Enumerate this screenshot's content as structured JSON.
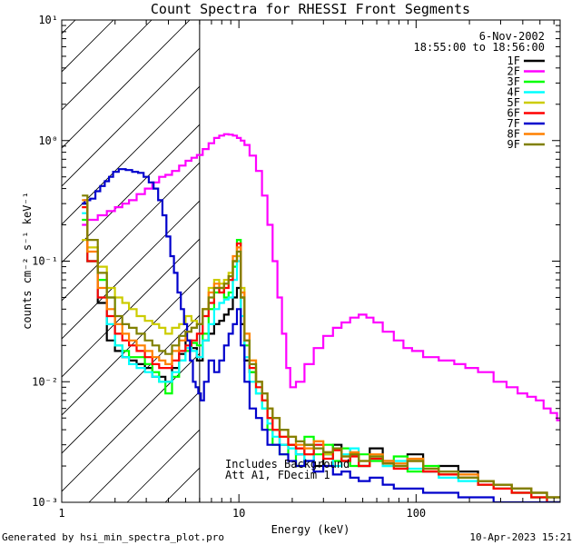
{
  "chart_data": {
    "type": "line",
    "title": "Count Spectra for RHESSI Front Segments",
    "xlabel": "Energy (keV)",
    "ylabel": "counts cm⁻² s⁻¹ keV⁻¹",
    "xscale": "log",
    "yscale": "log",
    "xlim": [
      1,
      650
    ],
    "ylim": [
      0.001,
      10
    ],
    "x_ticks": [
      {
        "value": 1,
        "label": "1"
      },
      {
        "value": 10,
        "label": "10"
      },
      {
        "value": 100,
        "label": "100"
      }
    ],
    "y_ticks": [
      {
        "value": 0.001,
        "label": "10⁻³"
      },
      {
        "value": 0.01,
        "label": "10⁻²"
      },
      {
        "value": 0.1,
        "label": "10⁻¹"
      },
      {
        "value": 1,
        "label": "10⁰"
      },
      {
        "value": 10,
        "label": "10¹"
      }
    ],
    "attenuator_band": {
      "x_from": 1,
      "x_to": 6
    },
    "date": "6-Nov-2002",
    "time_range": "18:55:00 to 18:56:00",
    "notes": [
      "Includes Background",
      "Att A1, FDecim 1"
    ],
    "footer_left": "Generated by hsi_min_spectra_plot.pro",
    "footer_right": "10-Apr-2023 15:21",
    "grid": false,
    "legend_position": "top-right",
    "series": [
      {
        "name": "1F",
        "color": "#000000",
        "x": [
          1.3,
          1.5,
          1.7,
          1.9,
          2.1,
          2.3,
          2.5,
          2.8,
          3.1,
          3.4,
          3.7,
          4.0,
          4.4,
          4.8,
          5.2,
          5.6,
          6.0,
          6.5,
          7.0,
          7.5,
          8.0,
          8.5,
          9.0,
          9.5,
          10.0,
          10.5,
          11,
          12,
          13,
          14,
          15,
          16,
          18,
          20,
          22,
          25,
          28,
          32,
          36,
          40,
          45,
          50,
          60,
          70,
          80,
          100,
          120,
          150,
          200,
          250,
          300,
          400,
          500,
          600
        ],
        "y": [
          0.3,
          0.1,
          0.045,
          0.022,
          0.018,
          0.016,
          0.015,
          0.014,
          0.013,
          0.011,
          0.011,
          0.01,
          0.013,
          0.017,
          0.022,
          0.019,
          0.015,
          0.022,
          0.025,
          0.03,
          0.032,
          0.036,
          0.04,
          0.05,
          0.06,
          0.03,
          0.015,
          0.012,
          0.01,
          0.007,
          0.005,
          0.004,
          0.003,
          0.003,
          0.0025,
          0.003,
          0.002,
          0.0025,
          0.003,
          0.0022,
          0.0025,
          0.002,
          0.0028,
          0.0022,
          0.002,
          0.0025,
          0.0018,
          0.002,
          0.0018,
          0.0015,
          0.0014,
          0.0013,
          0.0012,
          0.0011
        ]
      },
      {
        "name": "2F",
        "color": "#ff00ff",
        "x": [
          1.3,
          1.5,
          1.7,
          1.9,
          2.1,
          2.3,
          2.5,
          2.8,
          3.1,
          3.4,
          3.7,
          4.0,
          4.4,
          4.8,
          5.2,
          5.6,
          6.0,
          6.5,
          7.0,
          7.5,
          8.0,
          8.5,
          9.0,
          9.5,
          10.0,
          10.5,
          11,
          12,
          13,
          14,
          15,
          16,
          17,
          18,
          19,
          20,
          22,
          25,
          28,
          32,
          36,
          40,
          45,
          50,
          55,
          60,
          70,
          80,
          90,
          100,
          120,
          150,
          180,
          200,
          250,
          300,
          350,
          400,
          450,
          500,
          550,
          600,
          650
        ],
        "y": [
          0.2,
          0.22,
          0.24,
          0.26,
          0.28,
          0.3,
          0.32,
          0.36,
          0.4,
          0.45,
          0.5,
          0.52,
          0.56,
          0.62,
          0.68,
          0.72,
          0.76,
          0.85,
          0.95,
          1.05,
          1.1,
          1.13,
          1.12,
          1.1,
          1.05,
          1.0,
          0.92,
          0.75,
          0.56,
          0.35,
          0.2,
          0.1,
          0.05,
          0.025,
          0.013,
          0.009,
          0.01,
          0.014,
          0.019,
          0.024,
          0.028,
          0.031,
          0.034,
          0.036,
          0.034,
          0.031,
          0.026,
          0.022,
          0.019,
          0.018,
          0.016,
          0.015,
          0.014,
          0.013,
          0.012,
          0.01,
          0.009,
          0.008,
          0.0075,
          0.007,
          0.006,
          0.0055,
          0.0048
        ]
      },
      {
        "name": "3F",
        "color": "#00ff00",
        "x": [
          1.3,
          1.5,
          1.7,
          1.9,
          2.1,
          2.3,
          2.5,
          2.8,
          3.1,
          3.4,
          3.7,
          4.0,
          4.4,
          4.8,
          5.2,
          5.6,
          6.0,
          6.5,
          7.0,
          7.5,
          8.0,
          8.5,
          9.0,
          9.5,
          10.0,
          10.5,
          11,
          12,
          13,
          14,
          15,
          16,
          18,
          20,
          22,
          25,
          28,
          32,
          36,
          40,
          45,
          50,
          60,
          70,
          80,
          100,
          120,
          150,
          200,
          250,
          300,
          400,
          500,
          600
        ],
        "y": [
          0.22,
          0.1,
          0.07,
          0.05,
          0.02,
          0.018,
          0.016,
          0.016,
          0.014,
          0.012,
          0.01,
          0.008,
          0.011,
          0.015,
          0.018,
          0.021,
          0.02,
          0.025,
          0.04,
          0.055,
          0.06,
          0.05,
          0.055,
          0.09,
          0.15,
          0.05,
          0.02,
          0.012,
          0.008,
          0.006,
          0.004,
          0.003,
          0.0025,
          0.003,
          0.002,
          0.0035,
          0.0025,
          0.003,
          0.0022,
          0.0028,
          0.002,
          0.0025,
          0.0022,
          0.002,
          0.0024,
          0.0018,
          0.002,
          0.0017,
          0.0016,
          0.0014,
          0.0013,
          0.0012,
          0.0011,
          0.001
        ]
      },
      {
        "name": "4F",
        "color": "#00ffff",
        "x": [
          1.3,
          1.5,
          1.7,
          1.9,
          2.1,
          2.3,
          2.5,
          2.8,
          3.1,
          3.4,
          3.7,
          4.0,
          4.4,
          4.8,
          5.2,
          5.6,
          6.0,
          6.5,
          7.0,
          7.5,
          8.0,
          8.5,
          9.0,
          9.5,
          10.0,
          10.5,
          11,
          12,
          13,
          14,
          15,
          16,
          18,
          20,
          22,
          25,
          28,
          32,
          36,
          40,
          45,
          50,
          60,
          70,
          80,
          100,
          120,
          150,
          200,
          250,
          300,
          400,
          500,
          600
        ],
        "y": [
          0.25,
          0.1,
          0.05,
          0.03,
          0.02,
          0.016,
          0.014,
          0.013,
          0.012,
          0.011,
          0.01,
          0.01,
          0.012,
          0.015,
          0.019,
          0.018,
          0.016,
          0.022,
          0.03,
          0.04,
          0.045,
          0.048,
          0.05,
          0.07,
          0.1,
          0.035,
          0.016,
          0.01,
          0.008,
          0.006,
          0.0045,
          0.0035,
          0.003,
          0.0028,
          0.0025,
          0.0022,
          0.003,
          0.0025,
          0.002,
          0.0025,
          0.0028,
          0.002,
          0.0023,
          0.002,
          0.0022,
          0.0019,
          0.0018,
          0.0016,
          0.0015,
          0.0014,
          0.0013,
          0.0012,
          0.0011,
          0.001
        ]
      },
      {
        "name": "5F",
        "color": "#cccc00",
        "x": [
          1.3,
          1.5,
          1.7,
          1.9,
          2.1,
          2.3,
          2.5,
          2.8,
          3.1,
          3.4,
          3.7,
          4.0,
          4.4,
          4.8,
          5.2,
          5.6,
          6.0,
          6.5,
          7.0,
          7.5,
          8.0,
          8.5,
          9.0,
          9.5,
          10.0,
          10.5,
          11,
          12,
          13,
          14,
          15,
          16,
          18,
          20,
          22,
          25,
          28,
          32,
          36,
          40,
          45,
          50,
          60,
          70,
          80,
          100,
          120,
          150,
          200,
          250,
          300,
          400,
          500,
          600
        ],
        "y": [
          0.15,
          0.13,
          0.09,
          0.06,
          0.05,
          0.045,
          0.04,
          0.035,
          0.032,
          0.03,
          0.028,
          0.025,
          0.028,
          0.03,
          0.035,
          0.032,
          0.03,
          0.04,
          0.06,
          0.07,
          0.065,
          0.07,
          0.08,
          0.1,
          0.11,
          0.06,
          0.025,
          0.015,
          0.01,
          0.007,
          0.005,
          0.004,
          0.0035,
          0.003,
          0.0028,
          0.0025,
          0.0032,
          0.0025,
          0.0028,
          0.0022,
          0.0025,
          0.002,
          0.0024,
          0.0021,
          0.002,
          0.0022,
          0.0019,
          0.0017,
          0.0016,
          0.0014,
          0.0013,
          0.0012,
          0.0011,
          0.001
        ]
      },
      {
        "name": "6F",
        "color": "#ff0000",
        "x": [
          1.3,
          1.5,
          1.7,
          1.9,
          2.1,
          2.3,
          2.5,
          2.8,
          3.1,
          3.4,
          3.7,
          4.0,
          4.4,
          4.8,
          5.2,
          5.6,
          6.0,
          6.5,
          7.0,
          7.5,
          8.0,
          8.5,
          9.0,
          9.5,
          10.0,
          10.5,
          11,
          12,
          13,
          14,
          15,
          16,
          18,
          20,
          22,
          25,
          28,
          32,
          36,
          40,
          45,
          50,
          60,
          70,
          80,
          100,
          120,
          150,
          200,
          250,
          300,
          400,
          500,
          600
        ],
        "y": [
          0.28,
          0.1,
          0.05,
          0.035,
          0.025,
          0.022,
          0.02,
          0.018,
          0.016,
          0.014,
          0.013,
          0.013,
          0.015,
          0.018,
          0.02,
          0.022,
          0.025,
          0.035,
          0.045,
          0.06,
          0.055,
          0.06,
          0.07,
          0.1,
          0.14,
          0.05,
          0.022,
          0.013,
          0.009,
          0.007,
          0.005,
          0.004,
          0.0035,
          0.003,
          0.0028,
          0.0025,
          0.003,
          0.0023,
          0.0027,
          0.0022,
          0.0024,
          0.002,
          0.0023,
          0.0021,
          0.0019,
          0.0022,
          0.0018,
          0.0017,
          0.0016,
          0.0014,
          0.0013,
          0.0012,
          0.0011,
          0.001
        ]
      },
      {
        "name": "7F",
        "color": "#0000cc",
        "x": [
          1.3,
          1.4,
          1.5,
          1.6,
          1.7,
          1.8,
          1.9,
          2.0,
          2.2,
          2.4,
          2.6,
          2.8,
          3.0,
          3.2,
          3.4,
          3.6,
          3.8,
          4.0,
          4.2,
          4.4,
          4.6,
          4.8,
          5.0,
          5.2,
          5.4,
          5.6,
          5.8,
          6.0,
          6.2,
          6.5,
          7.0,
          7.5,
          8.0,
          8.5,
          9.0,
          9.5,
          10.0,
          10.5,
          11,
          12,
          13,
          14,
          15,
          16,
          18,
          20,
          22,
          25,
          28,
          32,
          36,
          40,
          45,
          50,
          60,
          70,
          80,
          100,
          120,
          150,
          200,
          250,
          300,
          400,
          500,
          600
        ],
        "y": [
          0.3,
          0.32,
          0.33,
          0.38,
          0.42,
          0.46,
          0.5,
          0.55,
          0.58,
          0.57,
          0.55,
          0.54,
          0.5,
          0.45,
          0.4,
          0.32,
          0.24,
          0.16,
          0.11,
          0.08,
          0.055,
          0.04,
          0.03,
          0.022,
          0.015,
          0.01,
          0.009,
          0.008,
          0.007,
          0.01,
          0.015,
          0.012,
          0.015,
          0.02,
          0.025,
          0.03,
          0.04,
          0.02,
          0.01,
          0.006,
          0.005,
          0.004,
          0.003,
          0.003,
          0.0025,
          0.0022,
          0.002,
          0.0022,
          0.0018,
          0.002,
          0.0017,
          0.0018,
          0.0016,
          0.0015,
          0.0016,
          0.0014,
          0.0013,
          0.0013,
          0.0012,
          0.0012,
          0.0011,
          0.0011,
          0.001,
          0.001,
          0.001,
          0.001
        ]
      },
      {
        "name": "8F",
        "color": "#ff8000",
        "x": [
          1.3,
          1.5,
          1.7,
          1.9,
          2.1,
          2.3,
          2.5,
          2.8,
          3.1,
          3.4,
          3.7,
          4.0,
          4.4,
          4.8,
          5.2,
          5.6,
          6.0,
          6.5,
          7.0,
          7.5,
          8.0,
          8.5,
          9.0,
          9.5,
          10.0,
          10.5,
          11,
          12,
          13,
          14,
          15,
          16,
          18,
          20,
          22,
          25,
          28,
          32,
          36,
          40,
          45,
          50,
          60,
          70,
          80,
          100,
          120,
          150,
          200,
          250,
          300,
          400,
          500,
          600
        ],
        "y": [
          0.32,
          0.12,
          0.06,
          0.04,
          0.03,
          0.025,
          0.022,
          0.02,
          0.018,
          0.016,
          0.015,
          0.014,
          0.018,
          0.022,
          0.026,
          0.028,
          0.03,
          0.04,
          0.055,
          0.065,
          0.06,
          0.065,
          0.075,
          0.11,
          0.13,
          0.055,
          0.025,
          0.015,
          0.01,
          0.008,
          0.006,
          0.005,
          0.004,
          0.0035,
          0.003,
          0.0028,
          0.0032,
          0.0026,
          0.0028,
          0.0024,
          0.0026,
          0.0022,
          0.0025,
          0.0022,
          0.0021,
          0.0023,
          0.0019,
          0.0018,
          0.0017,
          0.0015,
          0.0014,
          0.0013,
          0.0012,
          0.0011
        ]
      },
      {
        "name": "9F",
        "color": "#808000",
        "x": [
          1.3,
          1.5,
          1.7,
          1.9,
          2.1,
          2.3,
          2.5,
          2.8,
          3.1,
          3.4,
          3.7,
          4.0,
          4.4,
          4.8,
          5.2,
          5.6,
          6.0,
          6.5,
          7.0,
          7.5,
          8.0,
          8.5,
          9.0,
          9.5,
          10.0,
          10.5,
          11,
          12,
          13,
          14,
          15,
          16,
          18,
          20,
          22,
          25,
          28,
          32,
          36,
          40,
          45,
          50,
          60,
          70,
          80,
          100,
          120,
          150,
          200,
          250,
          300,
          400,
          500,
          600
        ],
        "y": [
          0.35,
          0.15,
          0.08,
          0.05,
          0.035,
          0.03,
          0.028,
          0.025,
          0.022,
          0.02,
          0.018,
          0.017,
          0.02,
          0.024,
          0.026,
          0.028,
          0.03,
          0.04,
          0.05,
          0.06,
          0.06,
          0.065,
          0.075,
          0.1,
          0.12,
          0.05,
          0.022,
          0.014,
          0.01,
          0.008,
          0.006,
          0.005,
          0.004,
          0.0035,
          0.0032,
          0.003,
          0.0028,
          0.0026,
          0.0028,
          0.0024,
          0.0025,
          0.0022,
          0.0024,
          0.0021,
          0.002,
          0.0022,
          0.0019,
          0.0018,
          0.0016,
          0.0015,
          0.0014,
          0.0013,
          0.0012,
          0.0011
        ]
      }
    ]
  }
}
